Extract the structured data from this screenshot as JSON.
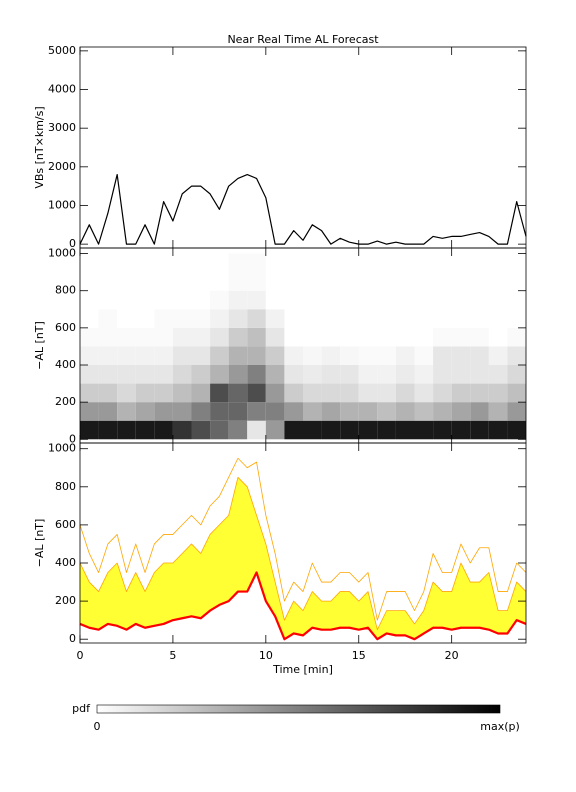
{
  "chart_data": [
    {
      "type": "line",
      "title": "Near Real Time AL Forecast",
      "ylabel": "VBs [nT×km/s]",
      "x": [
        0,
        0.5,
        1,
        1.5,
        2,
        2.5,
        3,
        3.5,
        4,
        4.5,
        5,
        5.5,
        6,
        6.5,
        7,
        7.5,
        8,
        8.5,
        9,
        9.5,
        10,
        10.5,
        11,
        11.5,
        12,
        12.5,
        13,
        13.5,
        14,
        14.5,
        15,
        15.5,
        16,
        16.5,
        17,
        17.5,
        18,
        18.5,
        19,
        19.5,
        20,
        20.5,
        21,
        21.5,
        22,
        22.5,
        23,
        23.5,
        24
      ],
      "series": [
        {
          "color": "#000000",
          "values": [
            0,
            500,
            0,
            800,
            1800,
            0,
            0,
            500,
            0,
            1100,
            600,
            1300,
            1500,
            1500,
            1300,
            900,
            1500,
            1700,
            1800,
            1700,
            1200,
            0,
            0,
            350,
            100,
            500,
            350,
            0,
            150,
            50,
            0,
            0,
            80,
            0,
            50,
            0,
            0,
            0,
            200,
            150,
            200,
            200,
            250,
            300,
            200,
            0,
            0,
            1100,
            200
          ]
        }
      ],
      "xlim": [
        0,
        24
      ],
      "xticks": [
        0,
        5,
        10,
        15,
        20
      ],
      "ylim": [
        -100,
        5100
      ],
      "yticks": [
        0,
        1000,
        2000,
        3000,
        4000,
        5000
      ]
    },
    {
      "type": "heatmap",
      "ylabel": "−AL [nT]",
      "bins": [
        0,
        1,
        2,
        3,
        4,
        5,
        6,
        7,
        8,
        9,
        10,
        11,
        12,
        13,
        14,
        15,
        16,
        17,
        18,
        19,
        20,
        21,
        22,
        23,
        24
      ],
      "ybins": [
        0,
        100,
        200,
        300,
        400,
        500,
        600,
        700,
        800,
        900,
        1000
      ],
      "z": [
        [
          0.9,
          0.4,
          0.2,
          0.1,
          0.05,
          0.02,
          0,
          0,
          0,
          0
        ],
        [
          0.9,
          0.4,
          0.2,
          0.1,
          0.05,
          0.02,
          0.02,
          0,
          0,
          0
        ],
        [
          0.9,
          0.3,
          0.15,
          0.1,
          0.05,
          0.02,
          0,
          0,
          0,
          0
        ],
        [
          0.9,
          0.35,
          0.2,
          0.1,
          0.05,
          0.02,
          0,
          0,
          0,
          0
        ],
        [
          0.9,
          0.4,
          0.2,
          0.1,
          0.05,
          0.02,
          0.02,
          0,
          0,
          0
        ],
        [
          0.8,
          0.4,
          0.25,
          0.15,
          0.1,
          0.05,
          0.02,
          0,
          0,
          0
        ],
        [
          0.7,
          0.5,
          0.3,
          0.2,
          0.1,
          0.05,
          0.02,
          0,
          0,
          0
        ],
        [
          0.6,
          0.6,
          0.7,
          0.3,
          0.2,
          0.1,
          0.05,
          0.02,
          0,
          0
        ],
        [
          0.5,
          0.6,
          0.6,
          0.4,
          0.3,
          0.2,
          0.1,
          0.05,
          0.02,
          0.02
        ],
        [
          0.1,
          0.5,
          0.7,
          0.5,
          0.3,
          0.25,
          0.15,
          0.05,
          0.02,
          0.02
        ],
        [
          0.4,
          0.5,
          0.4,
          0.3,
          0.2,
          0.1,
          0.05,
          0,
          0,
          0
        ],
        [
          0.9,
          0.4,
          0.2,
          0.1,
          0.05,
          0,
          0,
          0,
          0,
          0
        ],
        [
          0.9,
          0.3,
          0.15,
          0.08,
          0.03,
          0,
          0,
          0,
          0,
          0
        ],
        [
          0.9,
          0.35,
          0.15,
          0.1,
          0.05,
          0,
          0,
          0,
          0,
          0
        ],
        [
          0.9,
          0.3,
          0.15,
          0.1,
          0.03,
          0,
          0,
          0,
          0,
          0
        ],
        [
          0.9,
          0.3,
          0.1,
          0.05,
          0.02,
          0,
          0,
          0,
          0,
          0
        ],
        [
          0.9,
          0.25,
          0.1,
          0.05,
          0.02,
          0,
          0,
          0,
          0,
          0
        ],
        [
          0.9,
          0.3,
          0.15,
          0.08,
          0.05,
          0,
          0,
          0,
          0,
          0
        ],
        [
          0.9,
          0.25,
          0.1,
          0.05,
          0.02,
          0,
          0,
          0,
          0,
          0
        ],
        [
          0.9,
          0.3,
          0.15,
          0.1,
          0.1,
          0.02,
          0,
          0,
          0,
          0
        ],
        [
          0.9,
          0.35,
          0.2,
          0.1,
          0.1,
          0.02,
          0,
          0,
          0,
          0
        ],
        [
          0.9,
          0.4,
          0.2,
          0.1,
          0.1,
          0.02,
          0,
          0,
          0,
          0
        ],
        [
          0.9,
          0.3,
          0.2,
          0.1,
          0.05,
          0,
          0,
          0,
          0,
          0
        ],
        [
          0.9,
          0.4,
          0.25,
          0.15,
          0.1,
          0.02,
          0,
          0,
          0,
          0
        ]
      ],
      "xlim": [
        0,
        24
      ],
      "xticks": [
        0,
        5,
        10,
        15,
        20
      ],
      "ylim": [
        -20,
        1030
      ],
      "yticks": [
        0,
        200,
        400,
        600,
        800,
        1000
      ]
    },
    {
      "type": "band",
      "ylabel": "−AL [nT]",
      "xlabel": "Time [min]",
      "x": [
        0,
        0.5,
        1,
        1.5,
        2,
        2.5,
        3,
        3.5,
        4,
        4.5,
        5,
        5.5,
        6,
        6.5,
        7,
        7.5,
        8,
        8.5,
        9,
        9.5,
        10,
        10.5,
        11,
        11.5,
        12,
        12.5,
        13,
        13.5,
        14,
        14.5,
        15,
        15.5,
        16,
        16.5,
        17,
        17.5,
        18,
        18.5,
        19,
        19.5,
        20,
        20.5,
        21,
        21.5,
        22,
        22.5,
        23,
        23.5,
        24
      ],
      "series": [
        {
          "color": "#ff0000",
          "values": [
            80,
            60,
            50,
            80,
            70,
            50,
            80,
            60,
            70,
            80,
            100,
            110,
            120,
            110,
            150,
            180,
            200,
            250,
            250,
            350,
            200,
            120,
            0,
            30,
            20,
            60,
            50,
            50,
            60,
            60,
            50,
            60,
            0,
            30,
            20,
            20,
            0,
            30,
            60,
            60,
            50,
            60,
            60,
            60,
            50,
            30,
            30,
            100,
            80
          ]
        },
        {
          "color": "#ffa500",
          "fill": "#ffff33",
          "values": [
            400,
            300,
            250,
            350,
            400,
            250,
            350,
            250,
            350,
            400,
            400,
            450,
            500,
            450,
            550,
            600,
            650,
            850,
            800,
            650,
            500,
            300,
            100,
            200,
            150,
            250,
            200,
            200,
            250,
            250,
            200,
            250,
            50,
            150,
            150,
            150,
            80,
            150,
            300,
            250,
            250,
            400,
            300,
            300,
            350,
            150,
            150,
            300,
            250
          ]
        },
        {
          "color": "#ffa500",
          "values": [
            600,
            450,
            350,
            500,
            550,
            350,
            500,
            350,
            500,
            550,
            550,
            600,
            650,
            600,
            700,
            750,
            850,
            950,
            900,
            930,
            650,
            450,
            200,
            300,
            250,
            400,
            300,
            300,
            350,
            350,
            300,
            350,
            100,
            250,
            250,
            250,
            150,
            250,
            450,
            350,
            350,
            500,
            400,
            480,
            480,
            250,
            250,
            400,
            350
          ]
        }
      ],
      "xlim": [
        0,
        24
      ],
      "xticks": [
        0,
        5,
        10,
        15,
        20
      ],
      "ylim": [
        -20,
        1030
      ],
      "yticks": [
        0,
        200,
        400,
        600,
        800,
        1000
      ]
    }
  ],
  "colorbar": {
    "label": "pdf",
    "min_label": "0",
    "max_label": "max(p)"
  }
}
